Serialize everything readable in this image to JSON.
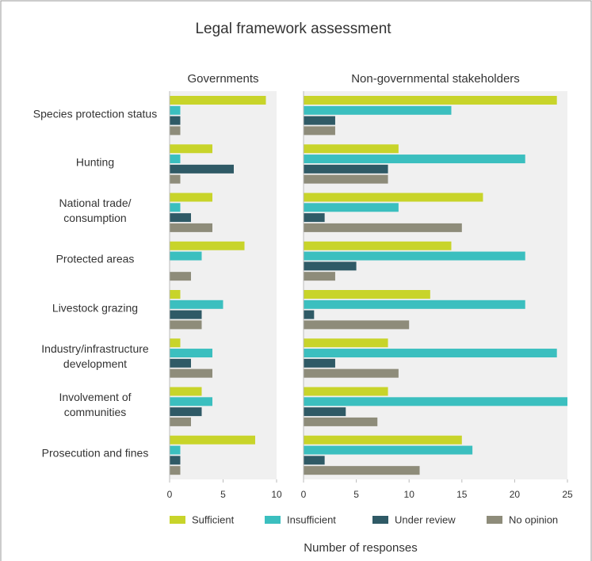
{
  "chart_data": {
    "type": "bar",
    "orientation": "horizontal",
    "title": "Legal framework assessment",
    "xlabel": "Number of responses",
    "categories": [
      "Species protection status",
      "Hunting",
      "National trade/ consumption",
      "Protected areas",
      "Livestock grazing",
      "Industry/infrastructure development",
      "Involvement of communities",
      "Prosecution and fines"
    ],
    "legend": "bottom",
    "grid": false,
    "panels": [
      {
        "title": "Governments",
        "xlim": [
          0,
          10
        ],
        "xticks": [
          0,
          5,
          10
        ],
        "series": [
          {
            "name": "Sufficient",
            "color": "#c8d42a",
            "values": [
              9,
              4,
              4,
              7,
              1,
              1,
              3,
              8
            ]
          },
          {
            "name": "Insufficient",
            "color": "#3bbfbf",
            "values": [
              1,
              1,
              1,
              3,
              5,
              4,
              4,
              1
            ]
          },
          {
            "name": "Under review",
            "color": "#2f5a66",
            "values": [
              1,
              6,
              2,
              0,
              3,
              2,
              3,
              1
            ]
          },
          {
            "name": "No opinion",
            "color": "#8e8c7a",
            "values": [
              1,
              1,
              4,
              2,
              3,
              4,
              2,
              1
            ]
          }
        ]
      },
      {
        "title": "Non-governmental stakeholders",
        "xlim": [
          0,
          25
        ],
        "xticks": [
          0,
          5,
          10,
          15,
          20,
          25
        ],
        "series": [
          {
            "name": "Sufficient",
            "color": "#c8d42a",
            "values": [
              24,
              9,
              17,
              14,
              12,
              8,
              8,
              15
            ]
          },
          {
            "name": "Insufficient",
            "color": "#3bbfbf",
            "values": [
              14,
              21,
              9,
              21,
              21,
              24,
              25,
              16
            ]
          },
          {
            "name": "Under review",
            "color": "#2f5a66",
            "values": [
              3,
              8,
              2,
              5,
              1,
              3,
              4,
              2
            ]
          },
          {
            "name": "No opinion",
            "color": "#8e8c7a",
            "values": [
              3,
              8,
              15,
              3,
              10,
              9,
              7,
              11
            ]
          }
        ]
      }
    ]
  }
}
